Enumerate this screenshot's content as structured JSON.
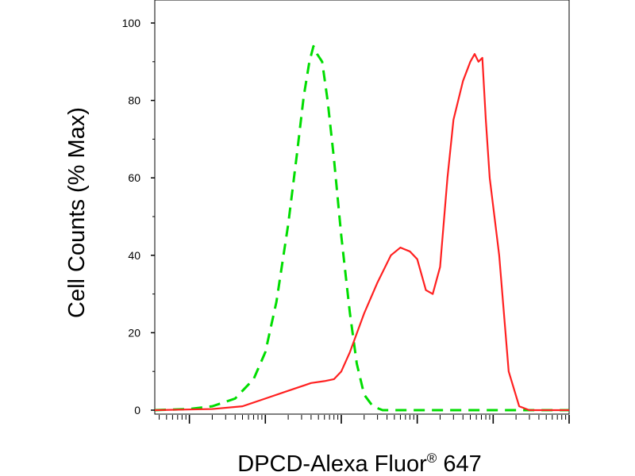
{
  "chart_data": {
    "type": "line",
    "xlabel": "DPCD-Alexa Fluor",
    "xlabel_sup": "®",
    "xlabel_tail": " 647",
    "ylabel": "Cell Counts (% Max)",
    "xscale": "log",
    "xlim": [
      0.35,
      100000
    ],
    "ylim": [
      0,
      105
    ],
    "yticks": [
      "0",
      "20",
      "40",
      "60",
      "80",
      "100"
    ],
    "grid": false,
    "series": [
      {
        "color": "#00dd00",
        "linestyle": "dashed",
        "x": [
          0.35,
          1,
          2,
          4,
          7,
          10,
          14,
          20,
          26,
          32,
          38,
          43,
          48,
          56,
          66,
          80,
          100,
          130,
          160,
          200,
          260,
          350,
          450,
          1000,
          10000,
          100000
        ],
        "y": [
          0,
          0.3,
          1,
          3,
          8,
          15,
          28,
          48,
          66,
          81,
          90,
          94,
          92,
          90,
          80,
          65,
          45,
          25,
          12,
          4,
          1,
          0,
          0,
          0,
          0,
          0
        ]
      },
      {
        "color": "#ff2020",
        "linestyle": "solid",
        "x": [
          0.35,
          2,
          5,
          10,
          20,
          40,
          60,
          80,
          100,
          130,
          200,
          300,
          450,
          600,
          800,
          1000,
          1300,
          1600,
          2000,
          2500,
          3000,
          4000,
          5000,
          5700,
          6400,
          7200,
          8000,
          9000,
          12000,
          16000,
          22000,
          30000,
          45000,
          100000
        ],
        "y": [
          0,
          0.3,
          1,
          3,
          5,
          7,
          7.5,
          8,
          10,
          15,
          25,
          33,
          40,
          42,
          41,
          39,
          31,
          30,
          37,
          60,
          75,
          85,
          90,
          92,
          90,
          91,
          75,
          60,
          40,
          10,
          1,
          0,
          0,
          0
        ]
      }
    ]
  }
}
